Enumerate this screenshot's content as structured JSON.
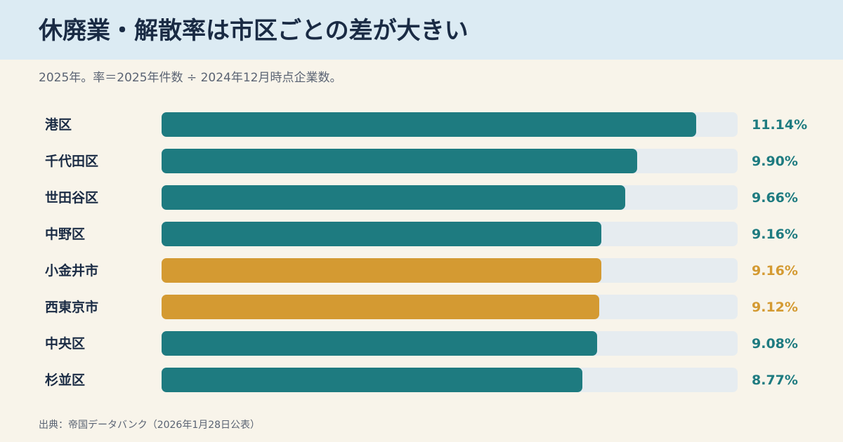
{
  "header": {
    "title": "休廃業・解散率は市区ごとの差が大きい",
    "subtitle": "2025年。率＝2025年件数 ÷ 2024年12月時点企業数。"
  },
  "source": "出典：帝国データバンク（2026年1月28日公表）",
  "colors": {
    "primary": "#1e7b80",
    "highlight": "#d49a32",
    "track": "#e6ecf0",
    "header_bg": "#dcebf3",
    "page_bg": "#f8f4ea"
  },
  "chart_data": {
    "type": "bar",
    "orientation": "horizontal",
    "title": "休廃業・解散率は市区ごとの差が大きい",
    "subtitle": "2025年。率＝2025年件数 ÷ 2024年12月時点企業数。",
    "categories": [
      "港区",
      "千代田区",
      "世田谷区",
      "中野区",
      "小金井市",
      "西東京市",
      "中央区",
      "杉並区"
    ],
    "values": [
      11.14,
      9.9,
      9.66,
      9.16,
      9.16,
      9.12,
      9.08,
      8.77
    ],
    "value_labels": [
      "11.14%",
      "9.90%",
      "9.66%",
      "9.16%",
      "9.16%",
      "9.12%",
      "9.08%",
      "8.77%"
    ],
    "highlighted": [
      false,
      false,
      false,
      false,
      true,
      true,
      false,
      false
    ],
    "unit": "%",
    "xlim": [
      0,
      12
    ],
    "grid": false,
    "legend": "none"
  }
}
